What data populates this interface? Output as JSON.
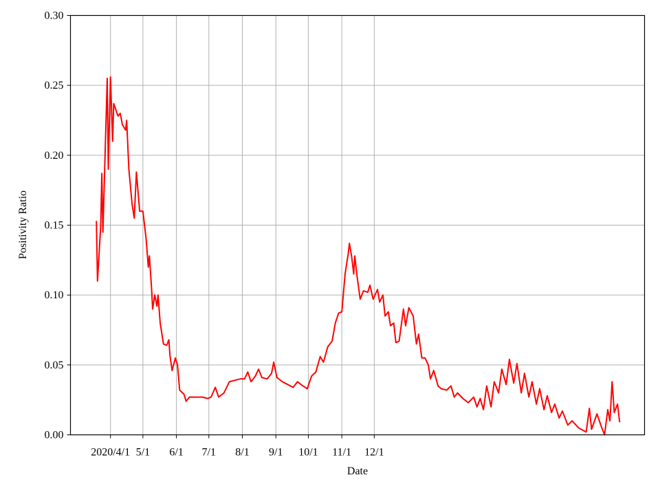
{
  "chart_data": {
    "type": "line",
    "xlabel": "Date",
    "ylabel": "Positivity Ratio",
    "color": "#ff0000",
    "grid": true,
    "x": [
      "2020-03-19",
      "2020-03-20",
      "2020-03-21",
      "2020-03-23",
      "2020-03-24",
      "2020-03-25",
      "2020-03-29",
      "2020-03-30",
      "2020-04-01",
      "2020-04-03",
      "2020-04-04",
      "2020-04-08",
      "2020-04-10",
      "2020-04-12",
      "2020-04-15",
      "2020-04-16",
      "2020-04-18",
      "2020-04-21",
      "2020-04-23",
      "2020-04-25",
      "2020-04-28",
      "2020-05-01",
      "2020-05-04",
      "2020-05-06",
      "2020-05-07",
      "2020-05-09",
      "2020-05-10",
      "2020-05-12",
      "2020-05-14",
      "2020-05-15",
      "2020-05-17",
      "2020-05-20",
      "2020-05-23",
      "2020-05-25",
      "2020-05-26",
      "2020-05-28",
      "2020-05-31",
      "2020-06-02",
      "2020-06-04",
      "2020-06-08",
      "2020-06-10",
      "2020-06-13",
      "2020-06-20",
      "2020-06-25",
      "2020-06-30",
      "2020-07-03",
      "2020-07-07",
      "2020-07-10",
      "2020-07-15",
      "2020-07-20",
      "2020-07-25",
      "2020-07-30",
      "2020-08-03",
      "2020-08-06",
      "2020-08-09",
      "2020-08-13",
      "2020-08-16",
      "2020-08-19",
      "2020-08-24",
      "2020-08-28",
      "2020-08-30",
      "2020-09-02",
      "2020-09-07",
      "2020-09-12",
      "2020-09-17",
      "2020-09-21",
      "2020-09-26",
      "2020-09-30",
      "2020-10-04",
      "2020-10-08",
      "2020-10-12",
      "2020-10-15",
      "2020-10-19",
      "2020-10-23",
      "2020-10-26",
      "2020-10-29",
      "2020-11-01",
      "2020-11-04",
      "2020-11-07",
      "2020-11-08",
      "2020-11-10",
      "2020-11-12",
      "2020-11-13",
      "2020-11-15",
      "2020-11-18",
      "2020-11-21",
      "2020-11-25",
      "2020-11-27",
      "2020-11-30",
      "2020-12-04",
      "2020-12-06",
      "2020-12-09",
      "2020-12-11",
      "2020-12-14",
      "2020-12-16",
      "2020-12-19",
      "2020-12-21",
      "2020-12-24",
      "2020-12-28",
      "2020-12-30",
      "2021-01-02",
      "2021-01-06",
      "2021-01-09",
      "2021-01-11",
      "2021-01-14",
      "2021-01-17",
      "2021-01-20",
      "2021-01-22",
      "2021-01-25",
      "2021-01-29",
      "2021-02-01",
      "2021-02-06",
      "2021-02-10",
      "2021-02-13",
      "2021-02-16",
      "2021-02-21",
      "2021-02-26",
      "2021-03-03",
      "2021-03-06",
      "2021-03-09",
      "2021-03-12",
      "2021-03-15",
      "2021-03-19",
      "2021-03-22",
      "2021-03-26",
      "2021-03-29",
      "2021-04-02",
      "2021-04-05",
      "2021-04-09",
      "2021-04-12",
      "2021-04-16",
      "2021-04-19",
      "2021-04-23",
      "2021-04-26",
      "2021-04-30",
      "2021-05-03",
      "2021-05-07",
      "2021-05-10",
      "2021-05-14",
      "2021-05-17",
      "2021-05-21",
      "2021-05-24",
      "2021-05-29",
      "2021-06-02",
      "2021-06-08",
      "2021-06-15",
      "2021-06-18",
      "2021-06-20",
      "2021-06-25",
      "2021-06-29",
      "2021-07-02",
      "2021-07-05",
      "2021-07-07",
      "2021-07-09",
      "2021-07-11",
      "2021-07-14",
      "2021-07-16"
    ],
    "values": [
      0.153,
      0.11,
      0.123,
      0.15,
      0.187,
      0.145,
      0.255,
      0.19,
      0.256,
      0.21,
      0.237,
      0.228,
      0.23,
      0.222,
      0.218,
      0.225,
      0.19,
      0.165,
      0.155,
      0.188,
      0.16,
      0.16,
      0.14,
      0.12,
      0.128,
      0.105,
      0.09,
      0.1,
      0.092,
      0.1,
      0.08,
      0.065,
      0.064,
      0.068,
      0.057,
      0.046,
      0.055,
      0.05,
      0.032,
      0.029,
      0.024,
      0.027,
      0.027,
      0.027,
      0.026,
      0.027,
      0.034,
      0.027,
      0.03,
      0.038,
      0.039,
      0.04,
      0.04,
      0.045,
      0.038,
      0.042,
      0.047,
      0.041,
      0.04,
      0.044,
      0.052,
      0.041,
      0.038,
      0.036,
      0.034,
      0.038,
      0.035,
      0.033,
      0.042,
      0.045,
      0.056,
      0.052,
      0.063,
      0.067,
      0.08,
      0.087,
      0.088,
      0.115,
      0.13,
      0.137,
      0.128,
      0.115,
      0.128,
      0.114,
      0.097,
      0.103,
      0.102,
      0.107,
      0.097,
      0.104,
      0.095,
      0.1,
      0.085,
      0.088,
      0.078,
      0.08,
      0.066,
      0.067,
      0.09,
      0.078,
      0.091,
      0.085,
      0.065,
      0.072,
      0.055,
      0.055,
      0.05,
      0.04,
      0.046,
      0.035,
      0.033,
      0.032,
      0.035,
      0.027,
      0.03,
      0.026,
      0.023,
      0.027,
      0.02,
      0.026,
      0.018,
      0.035,
      0.02,
      0.038,
      0.03,
      0.047,
      0.036,
      0.054,
      0.037,
      0.051,
      0.03,
      0.044,
      0.027,
      0.038,
      0.022,
      0.033,
      0.018,
      0.028,
      0.016,
      0.022,
      0.012,
      0.017,
      0.007,
      0.01,
      0.005,
      0.002,
      0.019,
      0.004,
      0.015,
      0.006,
      0.0,
      0.018,
      0.01,
      0.038,
      0.016,
      0.022,
      0.009
    ],
    "xlim": [
      "2020-02-24",
      "2021-08-08"
    ],
    "xticks": [
      {
        "value": "2020-04-01",
        "label": "2020/4/1"
      },
      {
        "value": "2020-05-01",
        "label": "5/1"
      },
      {
        "value": "2020-06-01",
        "label": "6/1"
      },
      {
        "value": "2020-07-01",
        "label": "7/1"
      },
      {
        "value": "2020-08-01",
        "label": "8/1"
      },
      {
        "value": "2020-09-01",
        "label": "9/1"
      },
      {
        "value": "2020-10-01",
        "label": "10/1"
      },
      {
        "value": "2020-11-01",
        "label": "11/1"
      },
      {
        "value": "2020-12-01",
        "label": "12/1"
      }
    ],
    "ylim": [
      0,
      0.3
    ],
    "yticks": [
      {
        "value": 0,
        "label": "0.00"
      },
      {
        "value": 0.05,
        "label": "0.05"
      },
      {
        "value": 0.1,
        "label": "0.10"
      },
      {
        "value": 0.15,
        "label": "0.15"
      },
      {
        "value": 0.2,
        "label": "0.20"
      },
      {
        "value": 0.25,
        "label": "0.25"
      },
      {
        "value": 0.3,
        "label": "0.30"
      }
    ]
  }
}
